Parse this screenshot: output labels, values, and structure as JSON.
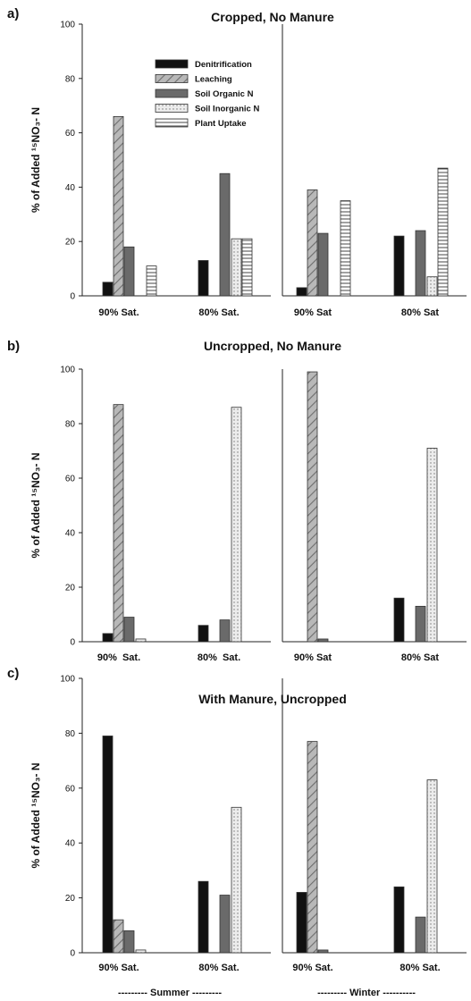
{
  "figure": {
    "season_labels": [
      "--------- Summer ---------",
      "--------- Winter ----------"
    ]
  },
  "colors": {
    "denitrification": "#111111",
    "leaching": "#b8b8b8",
    "leaching_hatch": "#6e6e6e",
    "soil_organic_n": "#6a6a6a",
    "soil_inorganic_n": "#ececec",
    "soil_inorganic_dots": "#777777",
    "plant_uptake": "#ffffff",
    "plant_uptake_lines": "#444444"
  },
  "chart_data": [
    {
      "panel_label": "a)",
      "type": "bar",
      "title": "Cropped, No Manure",
      "ylabel": "% of Added ¹⁵NO₃- N",
      "ylim": [
        0,
        100
      ],
      "yticks": [
        0,
        20,
        40,
        60,
        80,
        100
      ],
      "categories": [
        "90% Sat.",
        "80% Sat.",
        "90% Sat",
        "80% Sat"
      ],
      "legend": "top-left",
      "series": [
        {
          "name": "Denitrification",
          "key": "denitrification",
          "values": [
            5,
            13,
            3,
            22
          ]
        },
        {
          "name": "Leaching",
          "key": "leaching",
          "values": [
            66,
            0,
            39,
            0
          ]
        },
        {
          "name": "Soil Organic N",
          "key": "soil_organic_n",
          "values": [
            18,
            45,
            23,
            24
          ]
        },
        {
          "name": "Soil Inorganic N",
          "key": "soil_inorganic_n",
          "values": [
            0,
            21,
            0,
            7
          ]
        },
        {
          "name": "Plant Uptake",
          "key": "plant_uptake",
          "values": [
            11,
            21,
            35,
            47
          ]
        }
      ]
    },
    {
      "panel_label": "b)",
      "type": "bar",
      "title": "Uncropped, No Manure",
      "ylabel": "% of Added ¹⁵NO₃- N",
      "ylim": [
        0,
        100
      ],
      "yticks": [
        0,
        20,
        40,
        60,
        80,
        100
      ],
      "categories": [
        "90%  Sat.",
        "80%  Sat.",
        "90% Sat",
        "80% Sat"
      ],
      "series": [
        {
          "name": "Denitrification",
          "key": "denitrification",
          "values": [
            3,
            6,
            0,
            16
          ]
        },
        {
          "name": "Leaching",
          "key": "leaching",
          "values": [
            87,
            0,
            99,
            0
          ]
        },
        {
          "name": "Soil Organic N",
          "key": "soil_organic_n",
          "values": [
            9,
            8,
            1,
            13
          ]
        },
        {
          "name": "Soil Inorganic N",
          "key": "soil_inorganic_n",
          "values": [
            1,
            86,
            0,
            71
          ]
        }
      ]
    },
    {
      "panel_label": "c)",
      "type": "bar",
      "title": "With Manure, Uncropped",
      "ylabel": "% of Added ¹⁵NO₃- N",
      "ylim": [
        0,
        100
      ],
      "yticks": [
        0,
        20,
        40,
        60,
        80,
        100
      ],
      "categories": [
        "90% Sat.",
        "80% Sat.",
        "90% Sat.",
        "80% Sat."
      ],
      "series": [
        {
          "name": "Denitrification",
          "key": "denitrification",
          "values": [
            79,
            26,
            22,
            24
          ]
        },
        {
          "name": "Leaching",
          "key": "leaching",
          "values": [
            12,
            0,
            77,
            0
          ]
        },
        {
          "name": "Soil Organic N",
          "key": "soil_organic_n",
          "values": [
            8,
            21,
            1,
            13
          ]
        },
        {
          "name": "Soil Inorganic N",
          "key": "soil_inorganic_n",
          "values": [
            1,
            53,
            0,
            63
          ]
        }
      ]
    }
  ]
}
